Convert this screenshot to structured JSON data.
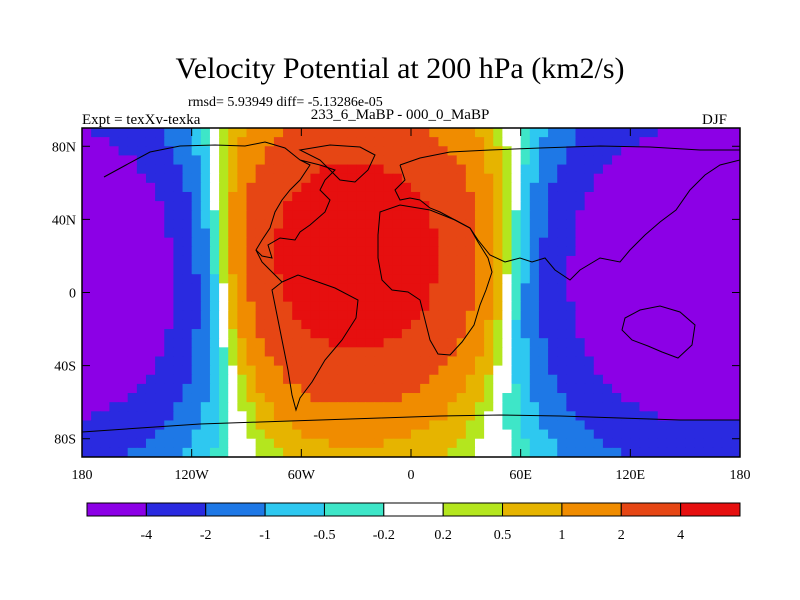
{
  "figure": {
    "title": "Velocity Potential at 200 hPa (km2/s)",
    "stats": "rmsd= 5.93949 diff= -5.13286e-05",
    "left_label": "Expt = texXv-texka",
    "center_label": "233_6_MaBP - 000_0_MaBP",
    "right_label": "DJF"
  },
  "chart_data": {
    "type": "heatmap",
    "projection": "cylindrical equidistant map, world",
    "title": "Velocity Potential at 200 hPa (km2/s)",
    "season": "DJF",
    "units": "km2/s",
    "x_range": [
      -180,
      180
    ],
    "y_range": [
      -90,
      90
    ],
    "x_ticks": [
      {
        "value": -180,
        "label": "180"
      },
      {
        "value": -120,
        "label": "120W"
      },
      {
        "value": -60,
        "label": "60W"
      },
      {
        "value": 0,
        "label": "0"
      },
      {
        "value": 60,
        "label": "60E"
      },
      {
        "value": 120,
        "label": "120E"
      },
      {
        "value": 180,
        "label": "180"
      }
    ],
    "y_ticks": [
      {
        "value": 80,
        "label": "80N"
      },
      {
        "value": 40,
        "label": "40N"
      },
      {
        "value": 0,
        "label": "0"
      },
      {
        "value": -40,
        "label": "40S"
      },
      {
        "value": -80,
        "label": "80S"
      }
    ],
    "colorbar": {
      "levels": [
        -4,
        -2,
        -1,
        -0.5,
        -0.2,
        0.2,
        0.5,
        1,
        2,
        4
      ],
      "labels": [
        "-4",
        "-2",
        "-1",
        "-0.5",
        "-0.2",
        "0.2",
        "0.5",
        "1",
        "2",
        "4"
      ],
      "colors": [
        "#8c00e6",
        "#2a2ae0",
        "#1e78e6",
        "#2ec8f0",
        "#3ee6c8",
        "#ffffff",
        "#b4e61e",
        "#e6b400",
        "#f08c00",
        "#e64614",
        "#e60f0f"
      ]
    },
    "fields": [
      {
        "name": "high over Atlantic / Americas / Africa",
        "lon": -35,
        "lat": 20,
        "peak_value": 4.5
      },
      {
        "name": "low over Indian Ocean / Maritime Continent / Pacific",
        "lon": 130,
        "lat": 10,
        "peak_value": -4.5
      },
      {
        "name": "low over eastern Pacific",
        "lon": -165,
        "lat": 10,
        "peak_value": -4.5
      }
    ]
  }
}
